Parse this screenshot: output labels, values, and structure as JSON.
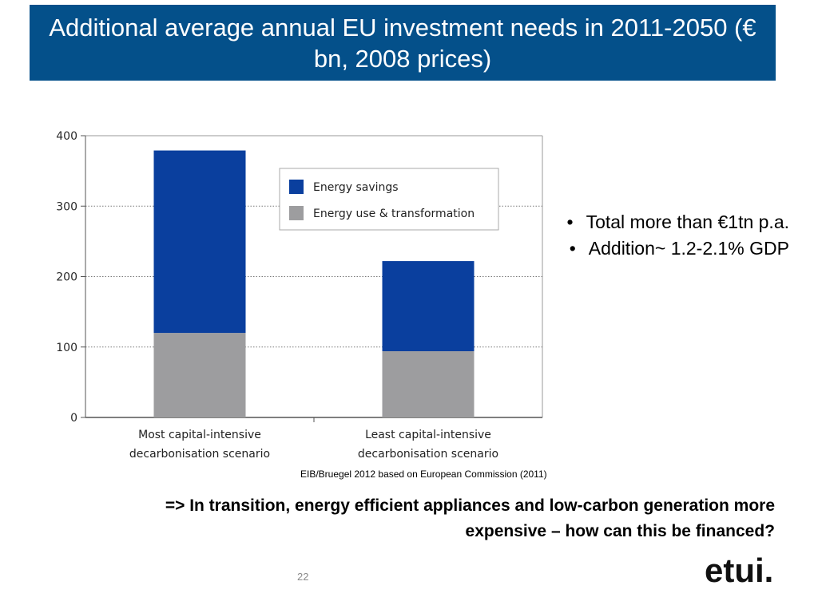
{
  "slide": {
    "title": "Additional average annual EU investment needs in 2011-2050 (€ bn, 2008 prices)",
    "bullets": [
      "Total more than €1tn p.a.",
      "Addition~ 1.2-2.1% GDP"
    ],
    "bullet_marker": "•",
    "source": "EIB/Bruegel 2012 based on European Commission (2011)",
    "conclusion": "=> In transition, energy efficient appliances and low-carbon generation more expensive – how can this be financed?",
    "page_number": "22",
    "logo_text": "etui."
  },
  "chart_data": {
    "type": "bar",
    "stacked": true,
    "categories_lines": [
      [
        "Most capital-intensive",
        "decarbonisation scenario"
      ],
      [
        "Least capital-intensive",
        "decarbonisation scenario"
      ]
    ],
    "series": [
      {
        "name": "Energy use & transformation",
        "values": [
          120,
          94
        ],
        "color": "#9d9d9f"
      },
      {
        "name": "Energy savings",
        "values": [
          259,
          128
        ],
        "color": "#0a3f9e"
      }
    ],
    "legend_order": [
      1,
      0
    ],
    "legend_position": "top-center",
    "ylim": [
      0,
      400
    ],
    "yticks": [
      0,
      100,
      200,
      300,
      400
    ],
    "grid": true,
    "title": "",
    "xlabel": "",
    "ylabel": ""
  }
}
